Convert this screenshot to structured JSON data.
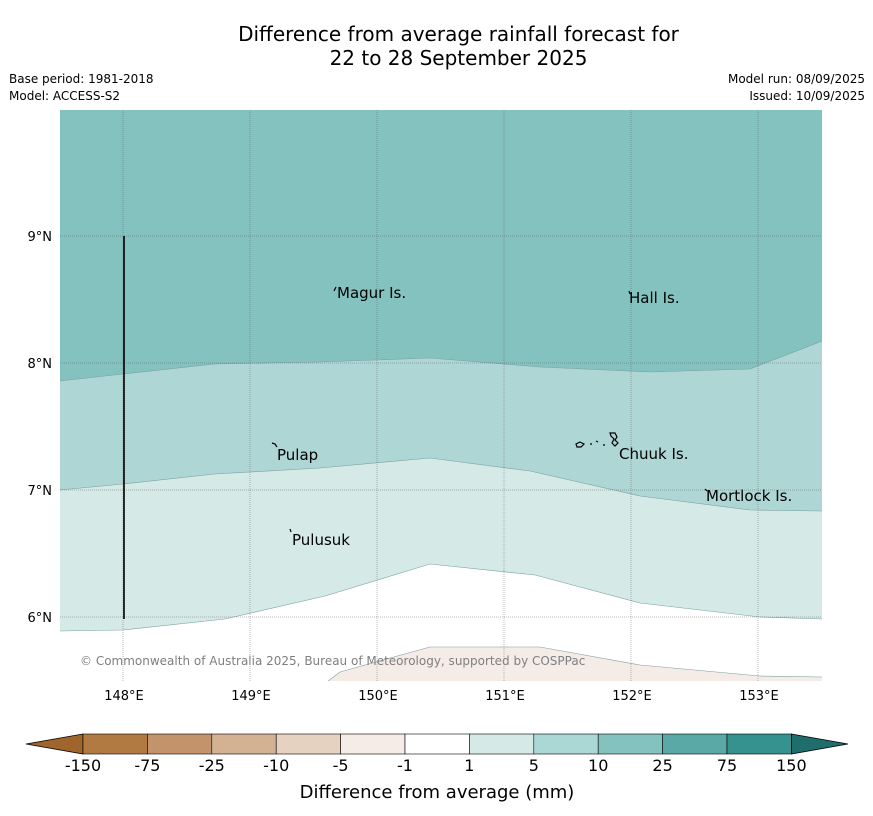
{
  "title": {
    "line1": "Difference from average rainfall forecast for",
    "line2": "22 to 28 September 2025"
  },
  "meta": {
    "base_period": "Base period: 1981-2018",
    "model": "Model: ACCESS-S2",
    "model_run": "Model run: 08/09/2025",
    "issued": "Issued: 10/09/2025"
  },
  "map": {
    "lon_ticks": [
      "148°E",
      "149°E",
      "150°E",
      "151°E",
      "152°E",
      "153°E"
    ],
    "lat_ticks": [
      "9°N",
      "8°N",
      "7°N",
      "6°N"
    ],
    "places": [
      {
        "name": "Magur Is."
      },
      {
        "name": "Hall Is."
      },
      {
        "name": "Pulap"
      },
      {
        "name": "Chuuk Is."
      },
      {
        "name": "Mortlock Is."
      },
      {
        "name": "Pulusuk"
      }
    ],
    "copyright": "© Commonwealth of Australia 2025, Bureau of Meteorology, supported by COSPPac"
  },
  "colorbar": {
    "labels": [
      "-150",
      "-75",
      "-25",
      "-10",
      "-5",
      "-1",
      "1",
      "5",
      "10",
      "25",
      "75",
      "150"
    ],
    "colors": [
      "#a0652d",
      "#b17a42",
      "#c3946b",
      "#d3b294",
      "#e6d2c1",
      "#f5ece8",
      "#ffffff",
      "#d5e9e7",
      "#abd7d5",
      "#84c2bf",
      "#5ba9a6",
      "#35928f",
      "#1f6e6b"
    ],
    "title": "Difference from average (mm)"
  }
}
